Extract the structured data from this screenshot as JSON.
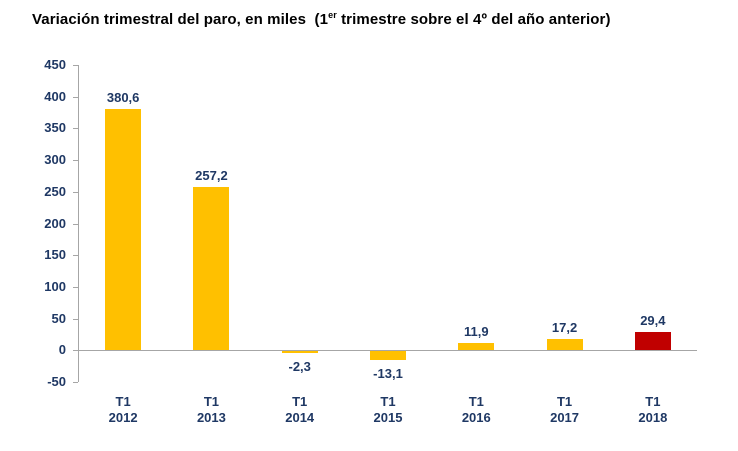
{
  "title": {
    "part1": "Variación trimestral del paro, en miles  (1",
    "sup": "er",
    "part2": " trimestre sobre el 4º del año anterior)"
  },
  "colors": {
    "bar_default": "#FFC000",
    "bar_highlight": "#C00000",
    "axis": "#A6A6A6",
    "label": "#1F3864",
    "title": "#000000",
    "background": "#FFFFFF"
  },
  "chart_data": {
    "type": "bar",
    "title": "Variación trimestral del paro, en miles (1er trimestre sobre el 4º del año anterior)",
    "categories": [
      "T1 2012",
      "T1 2013",
      "T1 2014",
      "T1 2015",
      "T1 2016",
      "T1 2017",
      "T1 2018"
    ],
    "values": [
      380.6,
      257.2,
      -2.3,
      -13.1,
      11.9,
      17.2,
      29.4
    ],
    "value_labels": [
      "380,6",
      "257,2",
      "-2,3",
      "-13,1",
      "11,9",
      "17,2",
      "29,4"
    ],
    "bar_colors": [
      "#FFC000",
      "#FFC000",
      "#FFC000",
      "#FFC000",
      "#FFC000",
      "#FFC000",
      "#C00000"
    ],
    "xlabel": "",
    "ylabel": "",
    "ylim": [
      -50,
      450
    ],
    "yticks": [
      450,
      400,
      350,
      300,
      250,
      200,
      150,
      100,
      50,
      0,
      -50
    ],
    "grid": false,
    "legend": "none",
    "highlighted_category": "T1 2018"
  }
}
